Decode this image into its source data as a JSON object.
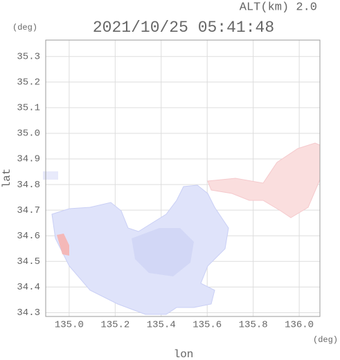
{
  "chart_data": {
    "type": "map",
    "title": "2021/10/25 05:41:48",
    "subtitle": "ALT(km) 2.0",
    "x_label": "lon",
    "y_label": "lat",
    "x_unit": "(deg)",
    "y_unit": "(deg)",
    "xlim": [
      134.898,
      136.09
    ],
    "ylim": [
      34.285,
      35.364
    ],
    "xticks": [
      {
        "value": 135,
        "label": "135.0"
      },
      135.2,
      135.4,
      135.6,
      135.8,
      {
        "value": 136,
        "label": "136.0"
      }
    ],
    "yticks": [
      34.3,
      34.4,
      34.5,
      34.6,
      34.7,
      34.8,
      34.9,
      {
        "value": 35,
        "label": "35.0"
      },
      35.1,
      35.2,
      35.3
    ],
    "grid": true
  }
}
